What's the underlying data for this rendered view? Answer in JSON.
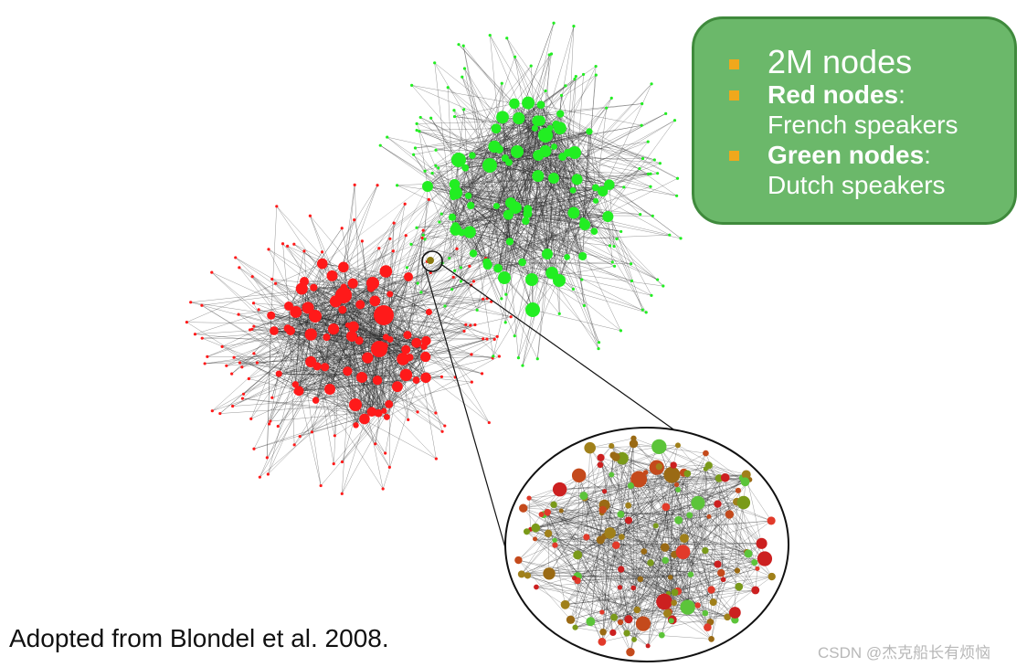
{
  "legend": {
    "item1": "2M nodes",
    "item2_bold": "Red nodes",
    "item2_rest": ":",
    "item2_line2": "French speakers",
    "item3_bold": "Green nodes",
    "item3_rest": ":",
    "item3_line2": "Dutch speakers"
  },
  "caption": "Adopted from Blondel et al. 2008.",
  "watermark": "CSDN @杰克船长有烦恼",
  "colors": {
    "french": "#ff1a1a",
    "dutch": "#22ee22",
    "mixed": "#8a7a10",
    "edge": "#2a2a2a",
    "legend_bg": "#6bb86a",
    "legend_border": "#3f8a3c",
    "bullet": "#f0a81c"
  }
}
